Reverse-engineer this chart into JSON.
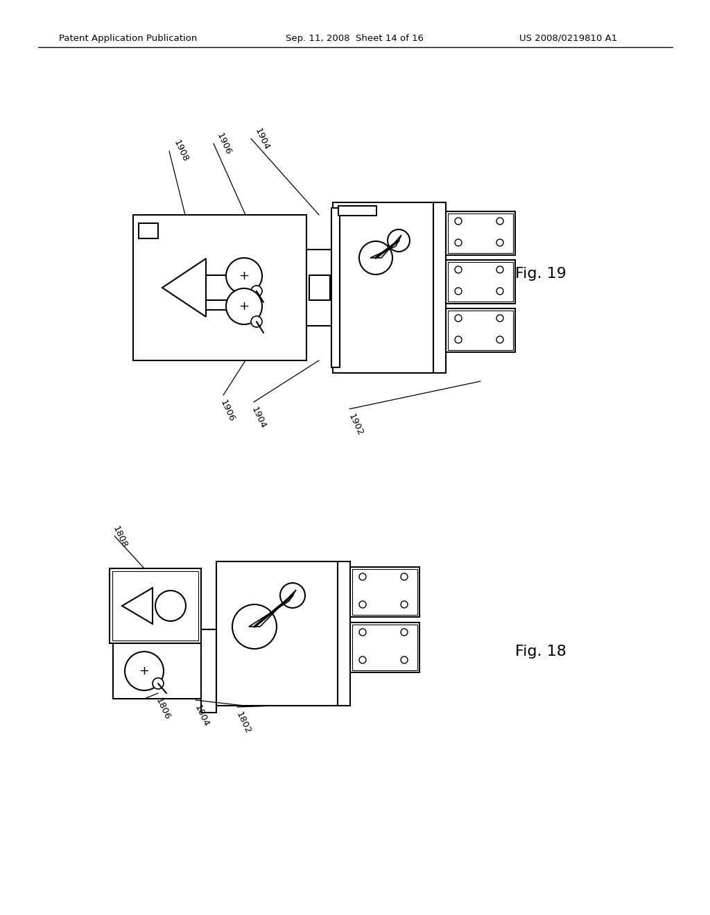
{
  "page_header_left": "Patent Application Publication",
  "page_header_mid": "Sep. 11, 2008  Sheet 14 of 16",
  "page_header_right": "US 2008/0219810 A1",
  "fig19_label": "Fig. 19",
  "fig18_label": "Fig. 18",
  "background": "#ffffff",
  "line_color": "#000000",
  "line_width": 1.5
}
